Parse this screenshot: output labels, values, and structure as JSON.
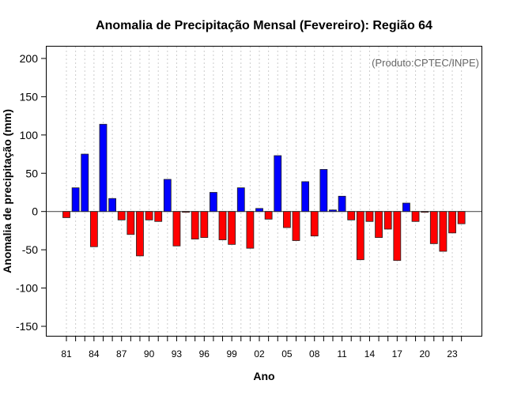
{
  "chart_data": {
    "type": "bar",
    "title": "Anomalia de Precipitação Mensal (Fevereiro): Região 64",
    "annotation": "(Produto:CPTEC/INPE)",
    "xlabel": "Ano",
    "ylabel": "Anomalia de precipitação (mm)",
    "ylim": [
      -165,
      215
    ],
    "yticks": [
      -150,
      -100,
      -50,
      0,
      50,
      100,
      150,
      200
    ],
    "xtick_labels": [
      "81",
      "84",
      "87",
      "90",
      "93",
      "96",
      "99",
      "02",
      "05",
      "08",
      "11",
      "14",
      "17",
      "20",
      "23"
    ],
    "grid": "vertical-dotted",
    "colors": {
      "positive": "#0000ff",
      "negative": "#ff0000"
    },
    "years": [
      1981,
      1982,
      1983,
      1984,
      1985,
      1986,
      1987,
      1988,
      1989,
      1990,
      1991,
      1992,
      1993,
      1994,
      1995,
      1996,
      1997,
      1998,
      1999,
      2000,
      2001,
      2002,
      2003,
      2004,
      2005,
      2006,
      2007,
      2008,
      2009,
      2010,
      2011,
      2012,
      2013,
      2014,
      2015,
      2016,
      2017,
      2018,
      2019,
      2020,
      2021,
      2022,
      2023,
      2024
    ],
    "values": [
      -8,
      31,
      75,
      -46,
      114,
      17,
      -11,
      -30,
      -58,
      -11,
      -13,
      42,
      -45,
      -1,
      -36,
      -34,
      25,
      -37,
      -43,
      31,
      -48,
      4,
      -10,
      73,
      -21,
      -38,
      39,
      -32,
      55,
      2,
      20,
      -11,
      -63,
      -13,
      -34,
      -23,
      -64,
      11,
      -13,
      -1,
      -42,
      -52,
      -28,
      -16
    ]
  }
}
